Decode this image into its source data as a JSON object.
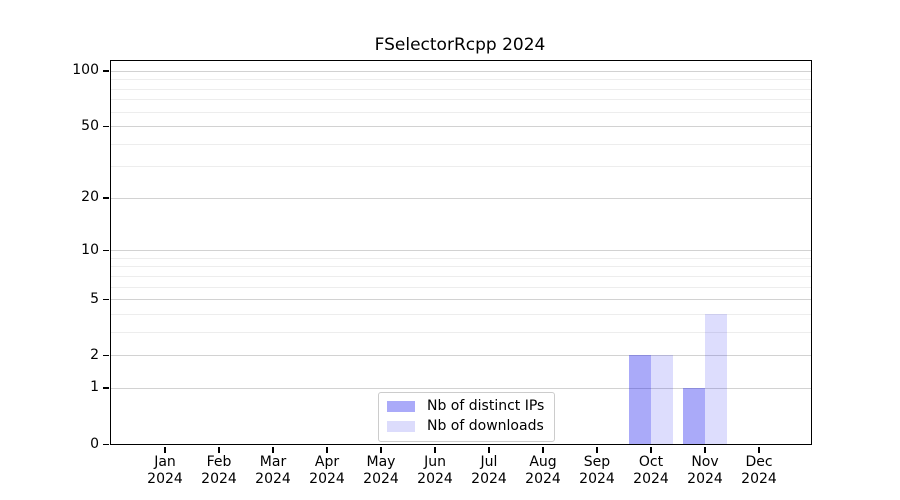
{
  "title": "FSelectorRcpp 2024",
  "legend": {
    "items": [
      {
        "label": "Nb of distinct IPs",
        "color": "#aaaaf9"
      },
      {
        "label": "Nb of downloads",
        "color": "#dcdcfc"
      }
    ]
  },
  "chart_data": {
    "type": "bar",
    "title": "FSelectorRcpp 2024",
    "scale": "log1p",
    "categories": [
      "Jan 2024",
      "Feb 2024",
      "Mar 2024",
      "Apr 2024",
      "May 2024",
      "Jun 2024",
      "Jul 2024",
      "Aug 2024",
      "Sep 2024",
      "Oct 2024",
      "Nov 2024",
      "Dec 2024"
    ],
    "x_tick_months": [
      "Jan",
      "Feb",
      "Mar",
      "Apr",
      "May",
      "Jun",
      "Jul",
      "Aug",
      "Sep",
      "Oct",
      "Nov",
      "Dec"
    ],
    "x_tick_year": "2024",
    "series": [
      {
        "name": "Nb of distinct IPs",
        "color": "rgba(0,0,238,0.335)",
        "values": [
          0,
          0,
          0,
          0,
          0,
          0,
          0,
          0,
          0,
          2,
          1,
          0
        ]
      },
      {
        "name": "Nb of downloads",
        "color": "rgba(0,0,238,0.135)",
        "values": [
          0,
          0,
          0,
          0,
          0,
          0,
          0,
          0,
          0,
          2,
          4,
          0
        ]
      }
    ],
    "y_ticks": [
      0,
      1,
      2,
      5,
      10,
      20,
      50,
      100
    ],
    "y_minor_gridlines": [
      3,
      4,
      6,
      7,
      8,
      9,
      30,
      40,
      60,
      70,
      80,
      90
    ],
    "ylim": [
      0,
      113
    ],
    "grid": true,
    "legend_position": "lower-center"
  }
}
